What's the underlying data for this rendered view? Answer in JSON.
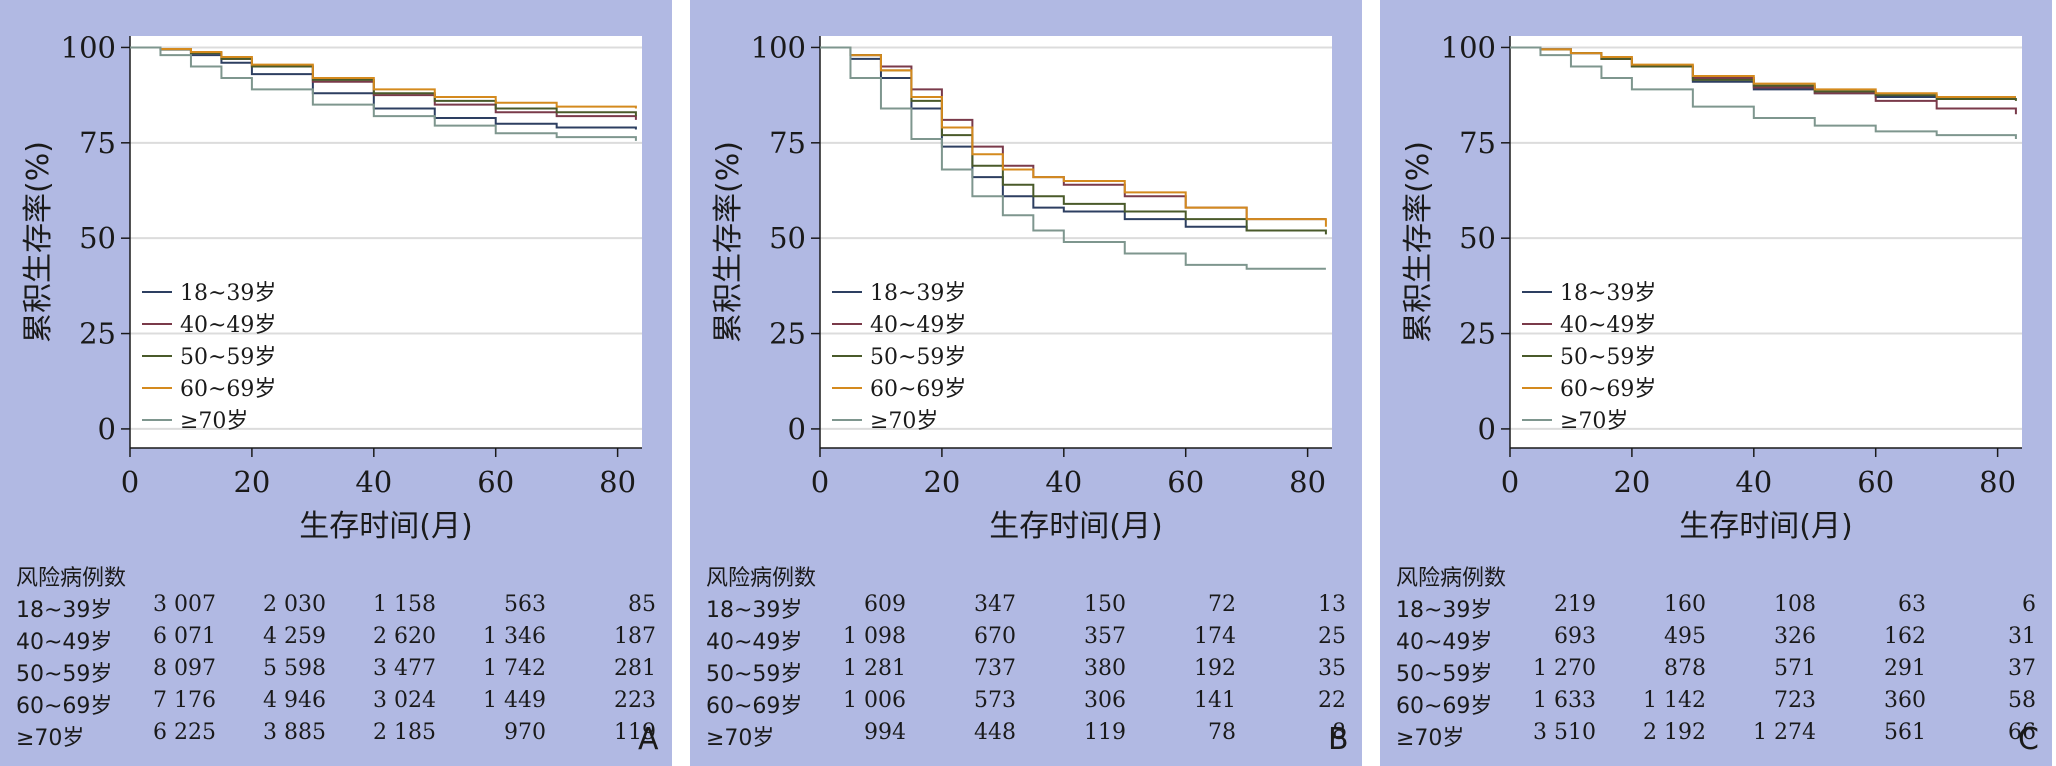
{
  "chart_data": [
    {
      "type": "line",
      "panel_label": "A",
      "xlabel": "生存时间(月)",
      "ylabel": "累积生存率(%)",
      "xlim": [
        0,
        84
      ],
      "ylim": [
        -5,
        103
      ],
      "x_ticks": [
        "0",
        "20",
        "40",
        "60",
        "80"
      ],
      "y_ticks": [
        "0",
        "25",
        "50",
        "75",
        "100"
      ],
      "grid": "horizontal",
      "legend_position": "lower-left",
      "x": [
        0,
        5,
        10,
        15,
        20,
        30,
        40,
        50,
        60,
        70,
        83
      ],
      "series": [
        {
          "name": "18~39岁",
          "color": "#2d3f61",
          "values": [
            100,
            99.5,
            98,
            96,
            93,
            88,
            84,
            81.5,
            80,
            79,
            78.5
          ]
        },
        {
          "name": "40~49岁",
          "color": "#7a3a4a",
          "values": [
            100,
            99.5,
            98.5,
            97,
            95,
            91,
            87.5,
            85,
            83,
            82,
            81
          ]
        },
        {
          "name": "50~59岁",
          "color": "#4a5a2a",
          "values": [
            100,
            99.5,
            98.5,
            97,
            95,
            91.5,
            88,
            86,
            84,
            83,
            82
          ]
        },
        {
          "name": "60~69岁",
          "color": "#d48a1e",
          "values": [
            100,
            99.6,
            98.8,
            97.5,
            95.5,
            92,
            89,
            87,
            85.5,
            84.5,
            84
          ]
        },
        {
          "name": "≥70岁",
          "color": "#7e968e",
          "values": [
            100,
            98,
            95,
            92,
            89,
            85,
            82,
            79.5,
            77.5,
            76.5,
            75.5
          ]
        }
      ],
      "risk_table": {
        "title": "风险病例数",
        "rows": [
          {
            "label": "18~39岁",
            "values": [
              "3 007",
              "2 030",
              "1 158",
              "563",
              "85"
            ]
          },
          {
            "label": "40~49岁",
            "values": [
              "6 071",
              "4 259",
              "2 620",
              "1 346",
              "187"
            ]
          },
          {
            "label": "50~59岁",
            "values": [
              "8 097",
              "5 598",
              "3 477",
              "1 742",
              "281"
            ]
          },
          {
            "label": "60~69岁",
            "values": [
              "7 176",
              "4 946",
              "3 024",
              "1 449",
              "223"
            ]
          },
          {
            "label": "≥70岁",
            "values": [
              "6 225",
              "3 885",
              "2 185",
              "970",
              "119"
            ]
          }
        ]
      }
    },
    {
      "type": "line",
      "panel_label": "B",
      "xlabel": "生存时间(月)",
      "ylabel": "累积生存率(%)",
      "xlim": [
        0,
        84
      ],
      "ylim": [
        -5,
        103
      ],
      "x_ticks": [
        "0",
        "20",
        "40",
        "60",
        "80"
      ],
      "y_ticks": [
        "0",
        "25",
        "50",
        "75",
        "100"
      ],
      "grid": "horizontal",
      "legend_position": "lower-left",
      "x": [
        0,
        5,
        10,
        15,
        20,
        25,
        30,
        35,
        40,
        50,
        60,
        70,
        83
      ],
      "series": [
        {
          "name": "18~39岁",
          "color": "#2d3f61",
          "values": [
            100,
            97,
            92,
            84,
            74,
            66,
            61,
            58,
            57,
            55,
            53,
            52,
            52
          ]
        },
        {
          "name": "40~49岁",
          "color": "#7a3a4a",
          "values": [
            100,
            98,
            95,
            89,
            81,
            74,
            69,
            66,
            64,
            61,
            58,
            55,
            55
          ]
        },
        {
          "name": "50~59岁",
          "color": "#4a5a2a",
          "values": [
            100,
            98,
            94,
            86,
            77,
            69,
            64,
            61,
            59,
            57,
            55,
            52,
            51
          ]
        },
        {
          "name": "60~69岁",
          "color": "#d48a1e",
          "values": [
            100,
            98,
            94,
            87,
            79,
            72,
            68,
            66,
            65,
            62,
            58,
            55,
            53
          ]
        },
        {
          "name": "≥70岁",
          "color": "#7e968e",
          "values": [
            100,
            92,
            84,
            76,
            68,
            61,
            56,
            52,
            49,
            46,
            43,
            42,
            42
          ]
        }
      ],
      "risk_table": {
        "title": "风险病例数",
        "rows": [
          {
            "label": "18~39岁",
            "values": [
              "609",
              "347",
              "150",
              "72",
              "13"
            ]
          },
          {
            "label": "40~49岁",
            "values": [
              "1 098",
              "670",
              "357",
              "174",
              "25"
            ]
          },
          {
            "label": "50~59岁",
            "values": [
              "1 281",
              "737",
              "380",
              "192",
              "35"
            ]
          },
          {
            "label": "60~69岁",
            "values": [
              "1 006",
              "573",
              "306",
              "141",
              "22"
            ]
          },
          {
            "label": "≥70岁",
            "values": [
              "994",
              "448",
              "119",
              "78",
              "8"
            ]
          }
        ]
      }
    },
    {
      "type": "line",
      "panel_label": "C",
      "xlabel": "生存时间(月)",
      "ylabel": "累积生存率(%)",
      "xlim": [
        0,
        84
      ],
      "ylim": [
        -5,
        103
      ],
      "x_ticks": [
        "0",
        "20",
        "40",
        "60",
        "80"
      ],
      "y_ticks": [
        "0",
        "25",
        "50",
        "75",
        "100"
      ],
      "grid": "horizontal",
      "legend_position": "lower-left",
      "x": [
        0,
        5,
        10,
        15,
        20,
        30,
        40,
        50,
        60,
        70,
        83
      ],
      "series": [
        {
          "name": "18~39岁",
          "color": "#2d3f61",
          "values": [
            100,
            99.5,
            98.5,
            97,
            95,
            91,
            89,
            88,
            87,
            87,
            87
          ]
        },
        {
          "name": "40~49岁",
          "color": "#7a3a4a",
          "values": [
            100,
            99.5,
            98.5,
            97,
            95,
            92,
            89.5,
            88,
            86,
            84,
            82.5
          ]
        },
        {
          "name": "50~59岁",
          "color": "#4a5a2a",
          "values": [
            100,
            99.5,
            98.5,
            97,
            95,
            91.5,
            90,
            88.5,
            87.5,
            86.5,
            86
          ]
        },
        {
          "name": "60~69岁",
          "color": "#d48a1e",
          "values": [
            100,
            99.5,
            98.5,
            97.5,
            95.5,
            92.5,
            90.5,
            89,
            88,
            87,
            87
          ]
        },
        {
          "name": "≥70岁",
          "color": "#7e968e",
          "values": [
            100,
            98,
            95,
            92,
            89,
            84.5,
            81.5,
            79.5,
            78,
            77,
            76
          ]
        }
      ],
      "risk_table": {
        "title": "风险病例数",
        "rows": [
          {
            "label": "18~39岁",
            "values": [
              "219",
              "160",
              "108",
              "63",
              "6"
            ]
          },
          {
            "label": "40~49岁",
            "values": [
              "693",
              "495",
              "326",
              "162",
              "31"
            ]
          },
          {
            "label": "50~59岁",
            "values": [
              "1 270",
              "878",
              "571",
              "291",
              "37"
            ]
          },
          {
            "label": "60~69岁",
            "values": [
              "1 633",
              "1 142",
              "723",
              "360",
              "58"
            ]
          },
          {
            "label": "≥70岁",
            "values": [
              "3 510",
              "2 192",
              "1 274",
              "561",
              "66"
            ]
          }
        ]
      }
    }
  ]
}
